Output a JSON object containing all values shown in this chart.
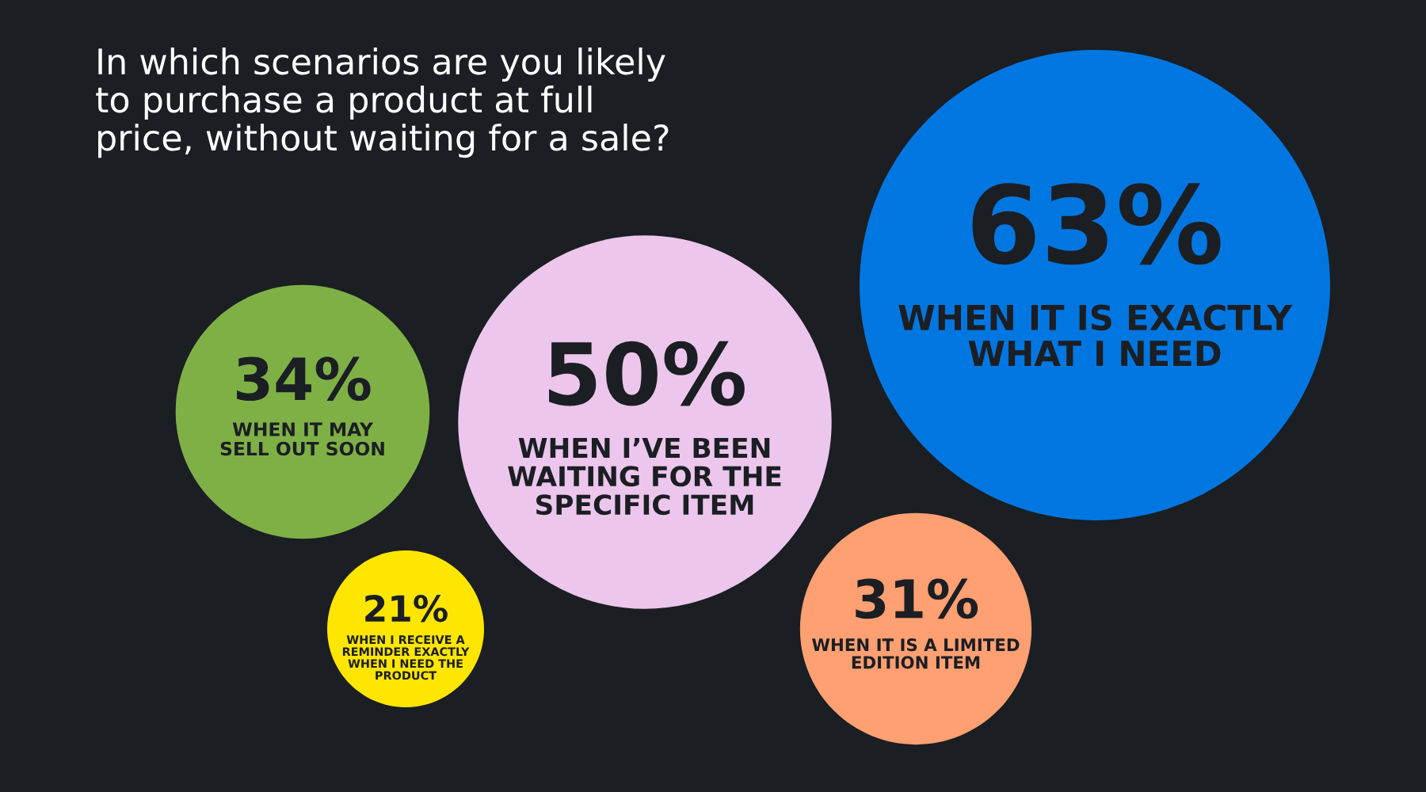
{
  "chart_data": {
    "type": "other",
    "title": "In which scenarios are you likely\nto purchase a product at full\nprice, without waiting for a sale?",
    "categories": [
      "WHEN IT MAY\nSELL OUT SOON",
      "WHEN I RECEIVE A\nREMINDER EXACTLY\nWHEN I NEED THE\nPRODUCT",
      "WHEN I’VE BEEN\nWAITING FOR THE\nSPECIFIC ITEM",
      "WHEN IT IS A LIMITED\nEDITION ITEM",
      "WHEN IT IS EXACTLY\nWHAT I NEED"
    ],
    "values": [
      34,
      21,
      50,
      31,
      63
    ],
    "colors": [
      "#7fb046",
      "#ffe600",
      "#ecc6ec",
      "#ffa072",
      "#0077e0"
    ],
    "value_labels": [
      "34%",
      "21%",
      "50%",
      "31%",
      "63%"
    ]
  }
}
